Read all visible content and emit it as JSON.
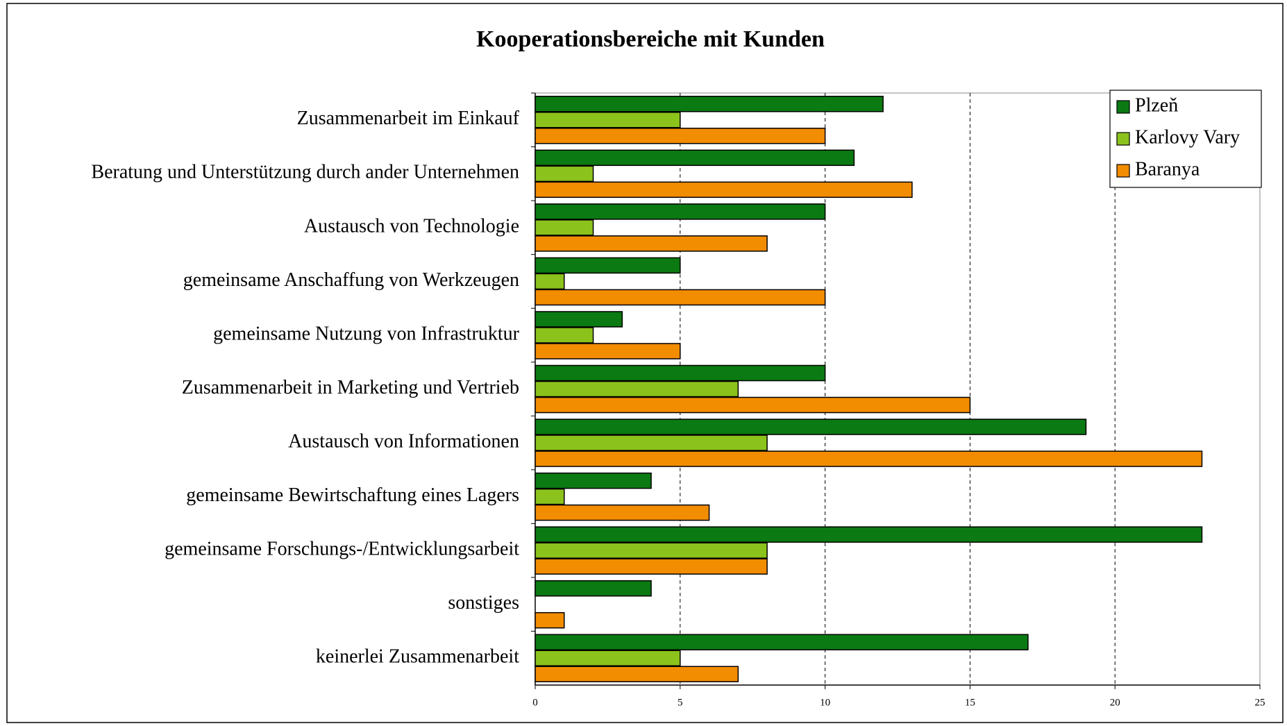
{
  "chart_data": {
    "type": "hbar",
    "title": "Kooperationsbereiche mit Kunden",
    "categories": [
      "Zusammenarbeit im Einkauf",
      "Beratung und Unterstützung durch ander Unternehmen",
      "Austausch von Technologie",
      "gemeinsame Anschaffung von Werkzeugen",
      "gemeinsame Nutzung von Infrastruktur",
      "Zusammenarbeit in Marketing und Vertrieb",
      "Austausch von Informationen",
      "gemeinsame Bewirtschaftung eines Lagers",
      "gemeinsame Forschungs-/Entwicklungsarbeit",
      "sonstiges",
      "keinerlei  Zusammenarbeit"
    ],
    "series": [
      {
        "name": "Plzeň",
        "color": "#0b7a12",
        "values": [
          12,
          11,
          10,
          5,
          3,
          10,
          19,
          4,
          23,
          4,
          17
        ]
      },
      {
        "name": "Karlovy Vary",
        "color": "#8cc21c",
        "values": [
          5,
          2,
          2,
          1,
          2,
          7,
          8,
          1,
          8,
          0,
          5
        ]
      },
      {
        "name": "Baranya",
        "color": "#f28c00",
        "values": [
          10,
          13,
          8,
          10,
          5,
          15,
          23,
          6,
          8,
          1,
          7
        ]
      }
    ],
    "xlim": [
      0,
      25
    ],
    "xticks": [
      0,
      5,
      10,
      15,
      20,
      25
    ],
    "grid": true,
    "legend": "top-right"
  }
}
